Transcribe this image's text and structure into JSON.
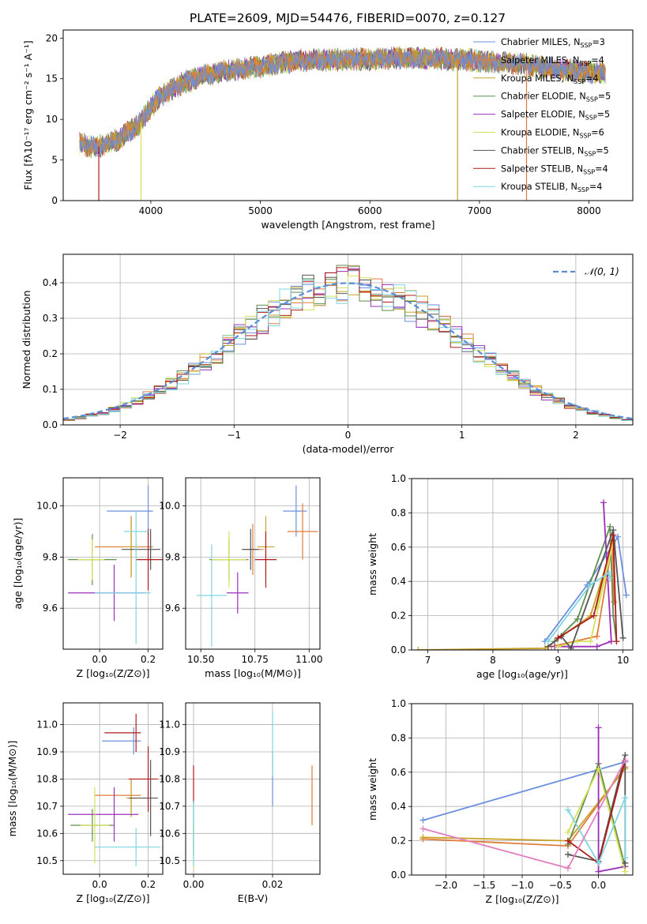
{
  "figure": {
    "title": "PLATE=2609, MJD=54476, FIBERID=0070, z=0.127"
  },
  "legend_models": [
    {
      "label": "Chabrier MILES, N",
      "sub": "SSP",
      "suffix": "=3",
      "color": "#6c8fde"
    },
    {
      "label": "Salpeter MILES, N",
      "sub": "SSP",
      "suffix": "=4",
      "color": "#e07b39"
    },
    {
      "label": "Kroupa MILES, N",
      "sub": "SSP",
      "suffix": "=4",
      "color": "#c9a227"
    },
    {
      "label": "Chabrier ELODIE, N",
      "sub": "SSP",
      "suffix": "=5",
      "color": "#5f8f4e"
    },
    {
      "label": "Salpeter ELODIE, N",
      "sub": "SSP",
      "suffix": "=5",
      "color": "#9b2fb8"
    },
    {
      "label": "Kroupa ELODIE, N",
      "sub": "SSP",
      "suffix": "=6",
      "color": "#d6e05a"
    },
    {
      "label": "Chabrier STELIB, N",
      "sub": "SSP",
      "suffix": "=5",
      "color": "#555555"
    },
    {
      "label": "Salpeter STELIB, N",
      "sub": "SSP",
      "suffix": "=4",
      "color": "#b01c1c"
    },
    {
      "label": "Kroupa STELIB, N",
      "sub": "SSP",
      "suffix": "=4",
      "color": "#7fd6e0"
    }
  ],
  "chart_data": [
    {
      "id": "spectrum",
      "type": "line",
      "xlabel": "wavelength [Angstrom, rest frame]",
      "ylabel": "Flux [fλ10⁻¹⁷ erg cm⁻² s⁻¹ A⁻¹]",
      "xlim": [
        3200,
        8400
      ],
      "ylim": [
        0,
        21
      ],
      "xticks": [
        4000,
        5000,
        6000,
        7000,
        8000
      ],
      "yticks": [
        0,
        5,
        10,
        15,
        20
      ],
      "grid": false,
      "legend": "top-right",
      "continuum": {
        "x": [
          3350,
          3500,
          3700,
          3900,
          4000,
          4100,
          4300,
          4500,
          4700,
          5000,
          5300,
          5600,
          6000,
          6300,
          6600,
          7000,
          7400,
          7800,
          8150
        ],
        "y": [
          7.0,
          6.5,
          7.5,
          9.5,
          11.5,
          13.0,
          14.5,
          15.5,
          16.0,
          16.5,
          17.2,
          17.3,
          17.4,
          17.6,
          17.5,
          17.2,
          16.8,
          16.0,
          15.7
        ]
      },
      "dropouts": [
        {
          "series": "Salpeter STELIB",
          "x": 3525,
          "to": 0
        },
        {
          "series": "Kroupa ELODIE",
          "x": 3910,
          "to": 0
        },
        {
          "series": "Kroupa MILES",
          "x": 6800,
          "to": 0
        },
        {
          "series": "Salpeter MILES",
          "x": 7430,
          "to": 0
        }
      ]
    },
    {
      "id": "residuals",
      "type": "histogram",
      "xlabel": "(data-model)/error",
      "ylabel": "Normed distribution",
      "xlim": [
        -2.5,
        2.5
      ],
      "ylim": [
        0,
        0.48
      ],
      "xticks": [
        -2,
        -1,
        0,
        1,
        2
      ],
      "yticks": [
        0.0,
        0.1,
        0.2,
        0.3,
        0.4
      ],
      "grid": true,
      "legend": "top-right",
      "reference": {
        "label": "𝒩(0, 1)",
        "mean": 0,
        "sigma": 1,
        "color": "#5b8ed6"
      },
      "bin_width": 0.1
    },
    {
      "id": "age_vs_Z",
      "type": "errorbar",
      "xlabel": "Z [log₁₀(Z/Z⊙)]",
      "ylabel": "age  [log₁₀(age/yr)]",
      "xlim": [
        -0.15,
        0.26
      ],
      "ylim": [
        9.44,
        10.11
      ],
      "xticks": [
        0.0,
        0.2
      ],
      "yticks": [
        9.6,
        9.8,
        10.0
      ],
      "grid": true,
      "points": [
        {
          "series": "Chabrier MILES",
          "x": 0.2,
          "xerr": [
            0.17,
            0.02
          ],
          "y": 9.98,
          "yerr": 0.1
        },
        {
          "series": "Salpeter MILES",
          "x": 0.13,
          "xerr": [
            0.15,
            0.09
          ],
          "y": 9.84,
          "yerr": 0.12
        },
        {
          "series": "Kroupa MILES",
          "x": 0.13,
          "xerr": 0.03,
          "y": 9.84,
          "yerr": 0.11
        },
        {
          "series": "Chabrier ELODIE",
          "x": -0.03,
          "xerr": 0.1,
          "y": 9.79,
          "yerr": 0.1
        },
        {
          "series": "Salpeter ELODIE",
          "x": 0.06,
          "xerr": [
            0.19,
            0.13
          ],
          "y": 9.66,
          "yerr": 0.11
        },
        {
          "series": "Kroupa ELODIE",
          "x": -0.03,
          "xerr": [
            0.06,
            0.05
          ],
          "y": 9.79,
          "yerr": 0.08
        },
        {
          "series": "Chabrier STELIB",
          "x": 0.21,
          "xerr": [
            0.12,
            0.04
          ],
          "y": 9.83,
          "yerr": 0.08
        },
        {
          "series": "Salpeter STELIB",
          "x": 0.2,
          "xerr": [
            0.05,
            0.06
          ],
          "y": 9.79,
          "yerr": 0.12
        },
        {
          "series": "Kroupa STELIB",
          "x": 0.15,
          "xerr": [
            0.17,
            0.06
          ],
          "y": 9.66,
          "yerr": 0.2
        },
        {
          "series": "Kroupa STELIB",
          "x": 0.15,
          "xerr": 0.05,
          "y": 9.9,
          "yerr": 0.08
        }
      ]
    },
    {
      "id": "age_vs_mass",
      "type": "errorbar",
      "xlabel": "mass [log₁₀(M/M⊙)]",
      "ylabel": "",
      "xlim": [
        10.43,
        11.05
      ],
      "ylim": [
        9.44,
        10.11
      ],
      "xticks": [
        10.5,
        10.75,
        11.0
      ],
      "yticks": [
        9.6,
        9.8,
        10.0
      ],
      "grid": true,
      "points": [
        {
          "series": "Chabrier MILES",
          "x": 10.94,
          "xerr": [
            0.06,
            0.05
          ],
          "y": 9.98,
          "yerr": 0.1
        },
        {
          "series": "Salpeter MILES",
          "x": 10.74,
          "xerr": 0.05,
          "y": 9.83,
          "yerr": 0.1
        },
        {
          "series": "Kroupa MILES",
          "x": 10.8,
          "xerr": 0.04,
          "y": 9.84,
          "yerr": 0.12
        },
        {
          "series": "Chabrier ELODIE",
          "x": 10.63,
          "xerr": 0.09,
          "y": 9.79,
          "yerr": 0.08
        },
        {
          "series": "Salpeter ELODIE",
          "x": 10.67,
          "xerr": 0.05,
          "y": 9.66,
          "yerr": 0.08
        },
        {
          "series": "Kroupa ELODIE",
          "x": 10.63,
          "xerr": 0.08,
          "y": 9.79,
          "yerr": 0.11
        },
        {
          "series": "Chabrier STELIB",
          "x": 10.73,
          "xerr": 0.04,
          "y": 9.83,
          "yerr": 0.08
        },
        {
          "series": "Salpeter STELIB",
          "x": 10.8,
          "xerr": 0.05,
          "y": 9.79,
          "yerr": 0.11
        },
        {
          "series": "Kroupa STELIB",
          "x": 10.55,
          "xerr": 0.07,
          "y": 9.65,
          "yerr": 0.2
        },
        {
          "series": "Salpeter MILES",
          "x": 10.97,
          "xerr": 0.07,
          "y": 9.9,
          "yerr": 0.11
        }
      ]
    },
    {
      "id": "weight_vs_age",
      "type": "line",
      "xlabel": "age  [log₁₀(age/yr)]",
      "ylabel": "mass weight",
      "xlim": [
        6.75,
        10.15
      ],
      "ylim": [
        0.0,
        1.0
      ],
      "xticks": [
        7,
        8,
        9,
        10
      ],
      "yticks": [
        0.0,
        0.2,
        0.4,
        0.6,
        0.8,
        1.0
      ],
      "grid": true,
      "series": [
        {
          "name": "Chabrier MILES",
          "x": [
            8.8,
            9.45,
            9.92,
            10.05
          ],
          "y": [
            0.05,
            0.38,
            0.66,
            0.32
          ]
        },
        {
          "name": "Salpeter MILES",
          "x": [
            8.9,
            9.6,
            9.84,
            9.86
          ],
          "y": [
            0.02,
            0.08,
            0.63,
            0.28
          ]
        },
        {
          "name": "Kroupa MILES",
          "x": [
            6.85,
            8.8,
            9.5,
            9.84
          ],
          "y": [
            0.0,
            0.01,
            0.2,
            0.62
          ]
        },
        {
          "name": "Chabrier ELODIE",
          "x": [
            8.95,
            9.3,
            9.8,
            9.85,
            9.9
          ],
          "y": [
            0.05,
            0.18,
            0.72,
            0.2,
            0.05
          ]
        },
        {
          "name": "Salpeter ELODIE",
          "x": [
            8.95,
            9.6,
            9.82,
            9.7
          ],
          "y": [
            0.02,
            0.02,
            0.05,
            0.86
          ]
        },
        {
          "name": "Kroupa ELODIE",
          "x": [
            9.0,
            9.3,
            9.5,
            9.85,
            9.6
          ],
          "y": [
            0.02,
            0.05,
            0.05,
            0.63,
            0.25
          ]
        },
        {
          "name": "Chabrier STELIB",
          "x": [
            8.85,
            9.05,
            9.2,
            9.85,
            10.0
          ],
          "y": [
            0.02,
            0.08,
            0.01,
            0.7,
            0.07
          ]
        },
        {
          "name": "Salpeter STELIB",
          "x": [
            9.0,
            9.55,
            9.85,
            9.9
          ],
          "y": [
            0.07,
            0.2,
            0.67,
            0.05
          ]
        },
        {
          "name": "Kroupa STELIB",
          "x": [
            8.85,
            9.5,
            9.78,
            9.8
          ],
          "y": [
            0.05,
            0.38,
            0.45,
            0.42
          ]
        }
      ]
    },
    {
      "id": "mass_vs_Z",
      "type": "errorbar",
      "xlabel": "Z [log₁₀(Z/Z⊙)]",
      "ylabel": "mass [log₁₀(M/M⊙)]",
      "xlim": [
        -0.15,
        0.26
      ],
      "ylim": [
        10.45,
        11.08
      ],
      "xticks": [
        0.0,
        0.2
      ],
      "yticks": [
        10.5,
        10.6,
        10.7,
        10.8,
        10.9,
        11.0
      ],
      "grid": true,
      "points": [
        {
          "series": "Chabrier MILES",
          "x": 0.14,
          "xerr": [
            0.13,
            0.03
          ],
          "y": 10.94,
          "yerr": 0.05
        },
        {
          "series": "Salpeter MILES",
          "x": 0.13,
          "xerr": [
            0.15,
            0.04
          ],
          "y": 10.74,
          "yerr": 0.06
        },
        {
          "series": "Kroupa MILES",
          "x": 0.13,
          "xerr": 0.02,
          "y": 10.73,
          "yerr": 0.07
        },
        {
          "series": "Chabrier ELODIE",
          "x": -0.03,
          "xerr": 0.09,
          "y": 10.63,
          "yerr": 0.06
        },
        {
          "series": "Salpeter ELODIE",
          "x": 0.06,
          "xerr": [
            0.19,
            0.1
          ],
          "y": 10.67,
          "yerr": 0.1
        },
        {
          "series": "Kroupa ELODIE",
          "x": -0.02,
          "xerr": 0.06,
          "y": 10.63,
          "yerr": 0.14
        },
        {
          "series": "Chabrier STELIB",
          "x": 0.21,
          "xerr": [
            0.09,
            0.03
          ],
          "y": 10.73,
          "yerr": 0.14
        },
        {
          "series": "Salpeter STELIB",
          "x": 0.2,
          "xerr": [
            0.08,
            0.04
          ],
          "y": 10.8,
          "yerr": 0.12
        },
        {
          "series": "Kroupa STELIB",
          "x": 0.15,
          "xerr": [
            0.17,
            0.1
          ],
          "y": 10.55,
          "yerr": 0.07
        },
        {
          "series": "Salpeter STELIB",
          "x": 0.15,
          "xerr": [
            0.13,
            0.02
          ],
          "y": 10.97,
          "yerr": 0.07
        }
      ]
    },
    {
      "id": "mass_vs_ebv",
      "type": "errorbar",
      "xlabel": "E(B-V)",
      "ylabel": "",
      "xlim": [
        -0.002,
        0.032
      ],
      "ylim": [
        10.45,
        11.08
      ],
      "xticks": [
        0.0,
        0.02
      ],
      "yticks": [
        10.5,
        10.6,
        10.7,
        10.8,
        10.9,
        11.0
      ],
      "grid": true,
      "points": [
        {
          "series": "Chabrier MILES",
          "x": 0.02,
          "y": 10.8,
          "yerr": 0.1
        },
        {
          "series": "Salpeter MILES",
          "x": 0.03,
          "y": 10.74,
          "yerr": 0.11
        },
        {
          "series": "Kroupa ELODIE",
          "x": 0.0,
          "y": 10.55,
          "yerr": 0.08
        },
        {
          "series": "Chabrier ELODIE",
          "x": 0.0,
          "y": 10.62,
          "yerr": 0.1
        },
        {
          "series": "Salpeter STELIB",
          "x": 0.0,
          "y": 10.78,
          "yerr": 0.07
        },
        {
          "series": "Kroupa STELIB",
          "x": 0.0,
          "y": 10.6,
          "yerr": 0.12
        },
        {
          "series": "Kroupa STELIB",
          "x": 0.02,
          "y": 10.93,
          "yerr": 0.12
        }
      ]
    },
    {
      "id": "weight_vs_Z",
      "type": "line",
      "xlabel": "Z [log₁₀(Z/Z⊙)]",
      "ylabel": "mass weight",
      "xlim": [
        -2.45,
        0.45
      ],
      "ylim": [
        0.0,
        1.0
      ],
      "xticks": [
        -2.0,
        -1.5,
        -1.0,
        -0.5,
        0.0
      ],
      "yticks": [
        0.0,
        0.2,
        0.4,
        0.6,
        0.8,
        1.0
      ],
      "grid": true,
      "series": [
        {
          "name": "Chabrier MILES",
          "x": [
            -2.3,
            0.35
          ],
          "y": [
            0.32,
            0.66
          ]
        },
        {
          "name": "Salpeter MILES",
          "x": [
            -2.3,
            -0.4,
            0.35
          ],
          "y": [
            0.21,
            0.17,
            0.63
          ]
        },
        {
          "name": "Kroupa MILES",
          "x": [
            -2.3,
            -0.4,
            0.35
          ],
          "y": [
            0.22,
            0.2,
            0.62
          ]
        },
        {
          "name": "Chabrier ELODIE",
          "x": [
            -0.4,
            0.0,
            0.35
          ],
          "y": [
            0.18,
            0.65,
            0.05
          ]
        },
        {
          "name": "Salpeter ELODIE",
          "x": [
            0.0,
            0.0,
            0.35
          ],
          "y": [
            0.86,
            0.02,
            0.05
          ]
        },
        {
          "name": "Kroupa ELODIE",
          "x": [
            -0.4,
            0.0,
            0.35
          ],
          "y": [
            0.25,
            0.62,
            0.02
          ]
        },
        {
          "name": "Chabrier STELIB",
          "x": [
            -0.4,
            0.0,
            0.35,
            0.35
          ],
          "y": [
            0.12,
            0.08,
            0.7,
            0.07
          ]
        },
        {
          "name": "Salpeter STELIB",
          "x": [
            -0.4,
            0.0,
            0.35
          ],
          "y": [
            0.2,
            0.07,
            0.67
          ]
        },
        {
          "name": "Kroupa STELIB",
          "x": [
            -0.4,
            0.0,
            0.35,
            0.35
          ],
          "y": [
            0.38,
            0.07,
            0.45,
            0.1
          ]
        },
        {
          "name": "pink",
          "x": [
            -2.3,
            -0.4,
            0.35
          ],
          "y": [
            0.27,
            0.04,
            0.67
          ]
        }
      ]
    }
  ]
}
